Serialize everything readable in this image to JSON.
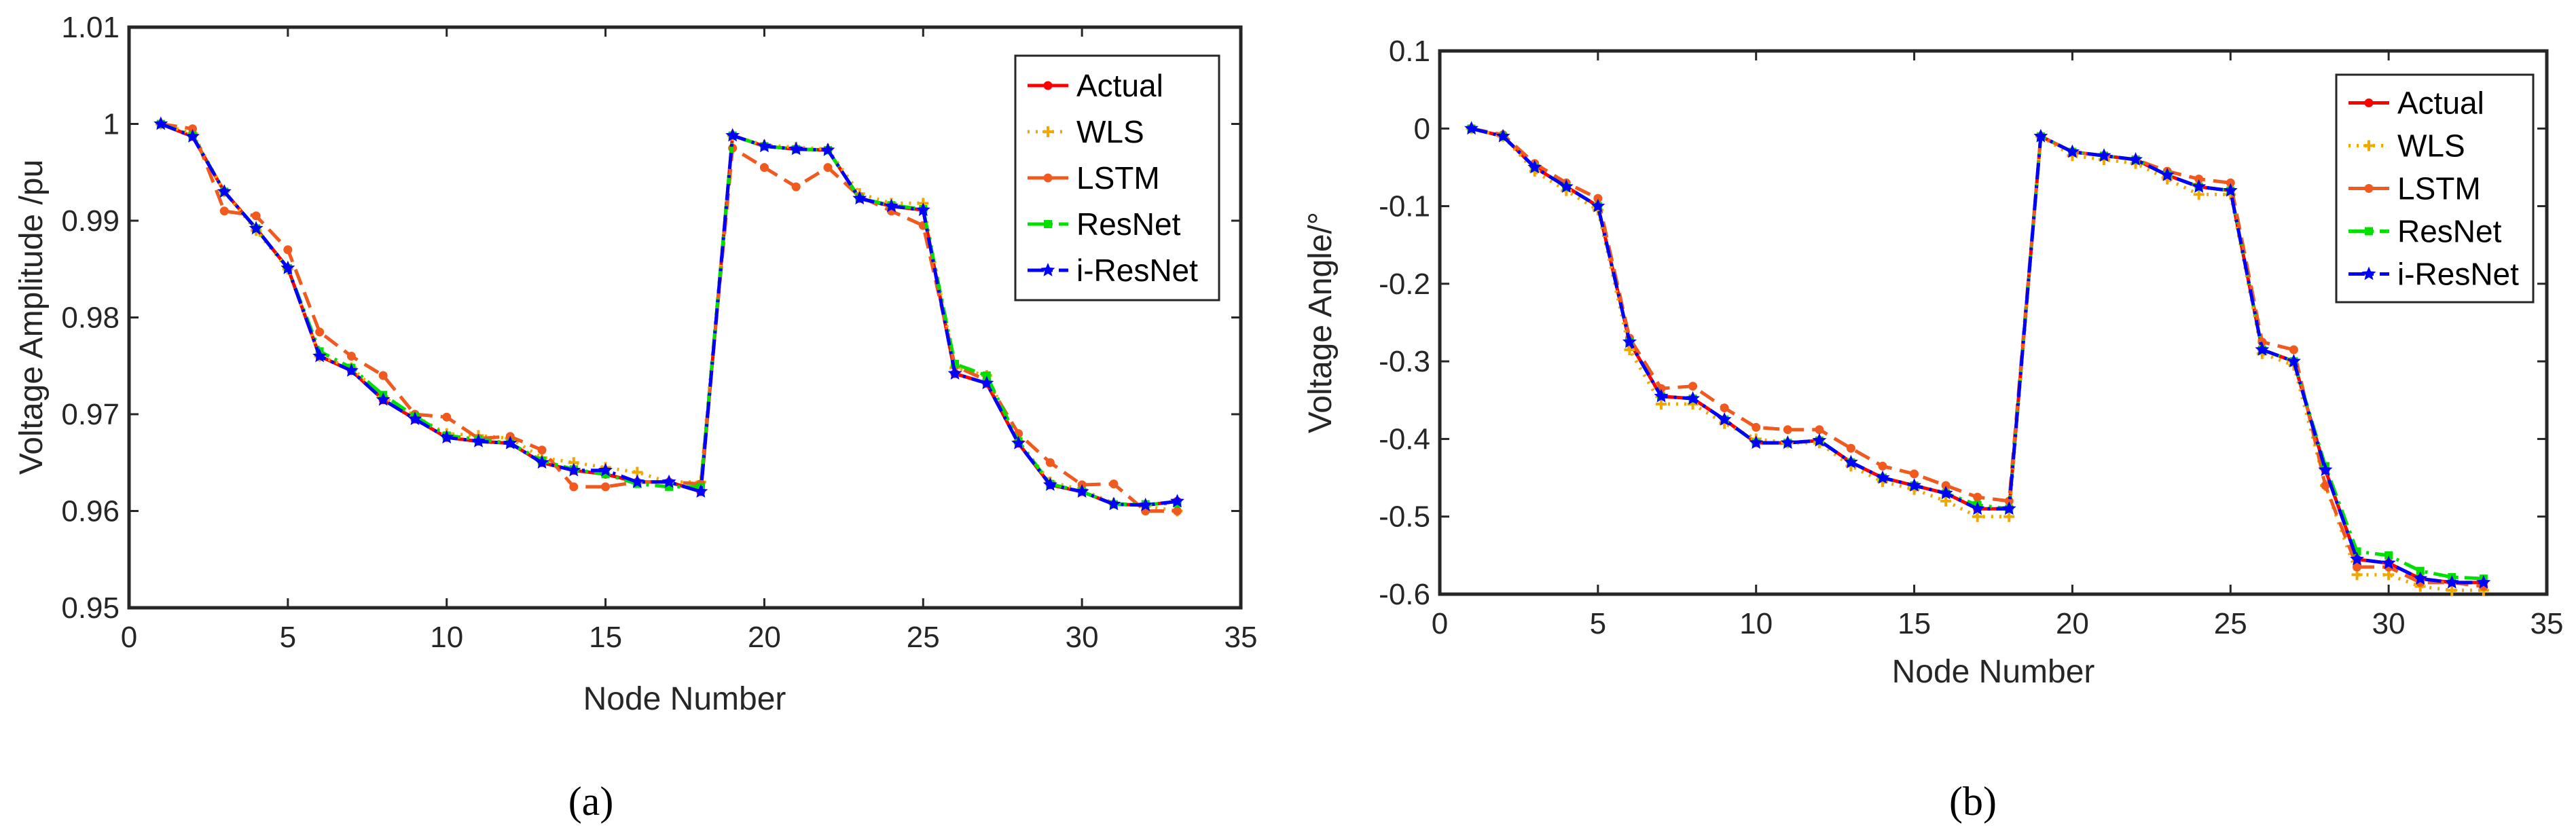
{
  "legend": [
    "Actual",
    "WLS",
    "LSTM",
    "ResNet",
    "i-ResNet"
  ],
  "series_styles": [
    {
      "name": "Actual",
      "color": "#ff0000",
      "dash": "",
      "marker": "circle"
    },
    {
      "name": "WLS",
      "color": "#f0a800",
      "dash": "dotted",
      "marker": "plus"
    },
    {
      "name": "LSTM",
      "color": "#f05a1e",
      "dash": "dashed",
      "marker": "circle"
    },
    {
      "name": "ResNet",
      "color": "#00e000",
      "dash": "dashdot",
      "marker": "square"
    },
    {
      "name": "i-ResNet",
      "color": "#0000ff",
      "dash": "dashdot",
      "marker": "star"
    }
  ],
  "chart_data": [
    {
      "type": "line",
      "caption": "(a)",
      "xlabel": "Node Number",
      "ylabel": "Voltage Amplitude /pu",
      "xlim": [
        0,
        35
      ],
      "ylim": [
        0.95,
        1.01
      ],
      "xticks": [
        "0",
        "5",
        "10",
        "15",
        "20",
        "25",
        "30",
        "35"
      ],
      "yticks": [
        "0.95",
        "0.96",
        "0.97",
        "0.98",
        "0.99",
        "1",
        "1.01"
      ],
      "legend_position": "top-right",
      "x": [
        1,
        2,
        3,
        4,
        5,
        6,
        7,
        8,
        9,
        10,
        11,
        12,
        13,
        14,
        15,
        16,
        17,
        18,
        19,
        20,
        21,
        22,
        23,
        24,
        25,
        26,
        27,
        28,
        29,
        30,
        31,
        32,
        33
      ],
      "series": [
        {
          "name": "Actual",
          "values": [
            1.0,
            0.9987,
            0.993,
            0.9892,
            0.9851,
            0.976,
            0.9745,
            0.9715,
            0.9695,
            0.9676,
            0.9672,
            0.967,
            0.965,
            0.9642,
            0.9638,
            0.963,
            0.963,
            0.962,
            0.9988,
            0.9977,
            0.9974,
            0.9973,
            0.9923,
            0.9915,
            0.9911,
            0.9742,
            0.9732,
            0.967,
            0.9627,
            0.962,
            0.9607,
            0.9606,
            0.961
          ]
        },
        {
          "name": "WLS",
          "values": [
            1.0,
            0.999,
            0.993,
            0.989,
            0.985,
            0.976,
            0.9748,
            0.9718,
            0.9698,
            0.968,
            0.9678,
            0.9675,
            0.9655,
            0.965,
            0.9645,
            0.964,
            0.963,
            0.963,
            0.9988,
            0.9978,
            0.9976,
            0.9974,
            0.9928,
            0.9918,
            0.9918,
            0.9748,
            0.974,
            0.9672,
            0.963,
            0.9622,
            0.9608,
            0.9605,
            0.96
          ]
        },
        {
          "name": "LSTM",
          "values": [
            1.0,
            0.9995,
            0.991,
            0.9905,
            0.987,
            0.9785,
            0.976,
            0.974,
            0.97,
            0.9697,
            0.9675,
            0.9677,
            0.9663,
            0.9625,
            0.9625,
            0.963,
            0.963,
            0.9628,
            0.9975,
            0.9955,
            0.9935,
            0.9955,
            0.9925,
            0.991,
            0.9895,
            0.975,
            0.9735,
            0.968,
            0.965,
            0.9627,
            0.9628,
            0.96,
            0.96
          ]
        },
        {
          "name": "ResNet",
          "values": [
            1.0,
            0.9988,
            0.993,
            0.9892,
            0.9851,
            0.9765,
            0.9748,
            0.972,
            0.9698,
            0.9678,
            0.9674,
            0.967,
            0.9652,
            0.9643,
            0.9638,
            0.9628,
            0.9625,
            0.9625,
            0.9988,
            0.9977,
            0.9974,
            0.9973,
            0.9923,
            0.9916,
            0.9912,
            0.9752,
            0.974,
            0.9672,
            0.9628,
            0.962,
            0.9607,
            0.9607,
            0.9608
          ]
        },
        {
          "name": "i-ResNet",
          "values": [
            1.0,
            0.9987,
            0.993,
            0.9892,
            0.9851,
            0.976,
            0.9745,
            0.9715,
            0.9695,
            0.9676,
            0.9672,
            0.967,
            0.965,
            0.9642,
            0.9642,
            0.963,
            0.963,
            0.962,
            0.9988,
            0.9977,
            0.9974,
            0.9973,
            0.9923,
            0.9915,
            0.9911,
            0.9742,
            0.9732,
            0.967,
            0.9627,
            0.962,
            0.9607,
            0.9606,
            0.961
          ]
        }
      ]
    },
    {
      "type": "line",
      "caption": "(b)",
      "xlabel": "Node Number",
      "ylabel": "Voltage Angle/°",
      "xlim": [
        0,
        35
      ],
      "ylim": [
        -0.6,
        0.1
      ],
      "xticks": [
        "0",
        "5",
        "10",
        "15",
        "20",
        "25",
        "30",
        "35"
      ],
      "yticks": [
        "-0.6",
        "-0.5",
        "-0.4",
        "-0.3",
        "-0.2",
        "-0.1",
        "0",
        "0.1"
      ],
      "legend_position": "top-right",
      "x": [
        1,
        2,
        3,
        4,
        5,
        6,
        7,
        8,
        9,
        10,
        11,
        12,
        13,
        14,
        15,
        16,
        17,
        18,
        19,
        20,
        21,
        22,
        23,
        24,
        25,
        26,
        27,
        28,
        29,
        30,
        31,
        32,
        33
      ],
      "series": [
        {
          "name": "Actual",
          "values": [
            0.0,
            -0.01,
            -0.05,
            -0.075,
            -0.1,
            -0.275,
            -0.345,
            -0.348,
            -0.375,
            -0.405,
            -0.405,
            -0.402,
            -0.43,
            -0.45,
            -0.46,
            -0.47,
            -0.49,
            -0.49,
            -0.01,
            -0.03,
            -0.035,
            -0.04,
            -0.06,
            -0.075,
            -0.08,
            -0.285,
            -0.3,
            -0.44,
            -0.555,
            -0.56,
            -0.58,
            -0.585,
            -0.585
          ]
        },
        {
          "name": "WLS",
          "values": [
            0.0,
            -0.01,
            -0.055,
            -0.08,
            -0.105,
            -0.285,
            -0.355,
            -0.355,
            -0.38,
            -0.4,
            -0.405,
            -0.405,
            -0.435,
            -0.455,
            -0.465,
            -0.48,
            -0.5,
            -0.5,
            -0.01,
            -0.035,
            -0.04,
            -0.045,
            -0.065,
            -0.085,
            -0.085,
            -0.29,
            -0.305,
            -0.46,
            -0.575,
            -0.575,
            -0.59,
            -0.595,
            -0.595
          ]
        },
        {
          "name": "LSTM",
          "values": [
            0.0,
            -0.008,
            -0.045,
            -0.07,
            -0.09,
            -0.27,
            -0.335,
            -0.332,
            -0.36,
            -0.385,
            -0.388,
            -0.388,
            -0.412,
            -0.435,
            -0.445,
            -0.46,
            -0.475,
            -0.48,
            -0.01,
            -0.03,
            -0.035,
            -0.04,
            -0.055,
            -0.065,
            -0.07,
            -0.275,
            -0.285,
            -0.46,
            -0.565,
            -0.565,
            -0.585,
            -0.585,
            -0.59
          ]
        },
        {
          "name": "ResNet",
          "values": [
            0.0,
            -0.01,
            -0.05,
            -0.075,
            -0.1,
            -0.275,
            -0.345,
            -0.348,
            -0.375,
            -0.405,
            -0.405,
            -0.402,
            -0.43,
            -0.45,
            -0.46,
            -0.47,
            -0.485,
            -0.49,
            -0.01,
            -0.03,
            -0.035,
            -0.04,
            -0.06,
            -0.075,
            -0.08,
            -0.285,
            -0.3,
            -0.435,
            -0.545,
            -0.55,
            -0.57,
            -0.578,
            -0.58
          ]
        },
        {
          "name": "i-ResNet",
          "values": [
            0.0,
            -0.01,
            -0.05,
            -0.075,
            -0.1,
            -0.275,
            -0.345,
            -0.348,
            -0.375,
            -0.405,
            -0.405,
            -0.402,
            -0.43,
            -0.45,
            -0.46,
            -0.47,
            -0.49,
            -0.49,
            -0.01,
            -0.03,
            -0.035,
            -0.04,
            -0.06,
            -0.075,
            -0.08,
            -0.285,
            -0.3,
            -0.44,
            -0.555,
            -0.56,
            -0.58,
            -0.585,
            -0.585
          ]
        }
      ]
    }
  ]
}
